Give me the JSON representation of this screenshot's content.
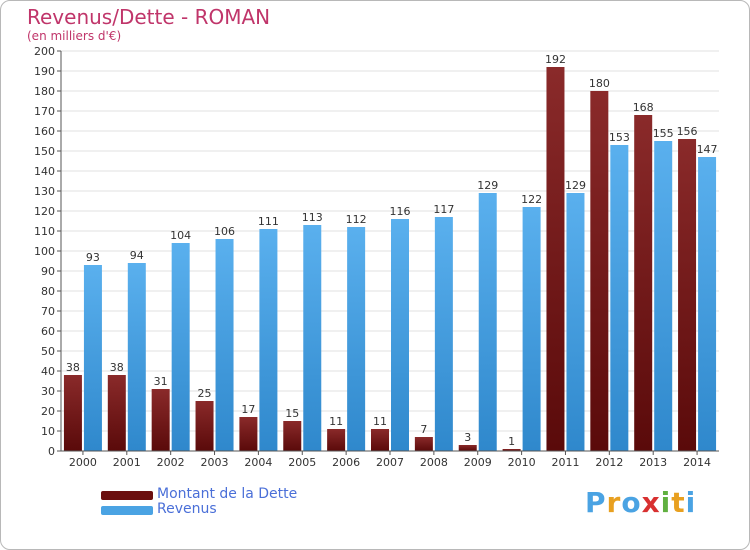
{
  "header": {
    "title": "Revenus/Dette - ROMAN",
    "subtitle": "(en milliers d'€)"
  },
  "chart_data": {
    "type": "bar",
    "categories": [
      "2000",
      "2001",
      "2002",
      "2003",
      "2004",
      "2005",
      "2006",
      "2007",
      "2008",
      "2009",
      "2010",
      "2011",
      "2012",
      "2013",
      "2014"
    ],
    "series": [
      {
        "name": "Montant de la Dette",
        "color": "#7a1a1a",
        "values": [
          38,
          38,
          31,
          25,
          17,
          15,
          11,
          11,
          7,
          3,
          1,
          192,
          180,
          168,
          156
        ]
      },
      {
        "name": "Revenus",
        "color": "#4aa3e3",
        "values": [
          93,
          94,
          104,
          106,
          111,
          113,
          112,
          116,
          117,
          129,
          122,
          129,
          153,
          155,
          147
        ]
      }
    ],
    "ylim": [
      0,
      200
    ],
    "yticks": [
      0,
      10,
      20,
      30,
      40,
      50,
      60,
      70,
      80,
      90,
      100,
      110,
      120,
      130,
      140,
      150,
      160,
      170,
      180,
      190,
      200
    ],
    "grid": true,
    "legend_position": "bottom-left"
  },
  "legend": {
    "items": [
      {
        "label": "Montant de la Dette",
        "color": "#6b0f0f"
      },
      {
        "label": "Revenus",
        "color": "#4aa3e3"
      }
    ]
  },
  "logo": {
    "letters": [
      "P",
      "r",
      "o",
      "x",
      "i",
      "t",
      "i"
    ],
    "colors": [
      "#4aa3e3",
      "#e8a020",
      "#4aa3e3",
      "#d83030",
      "#60b040",
      "#e8a020",
      "#4aa3e3"
    ]
  }
}
